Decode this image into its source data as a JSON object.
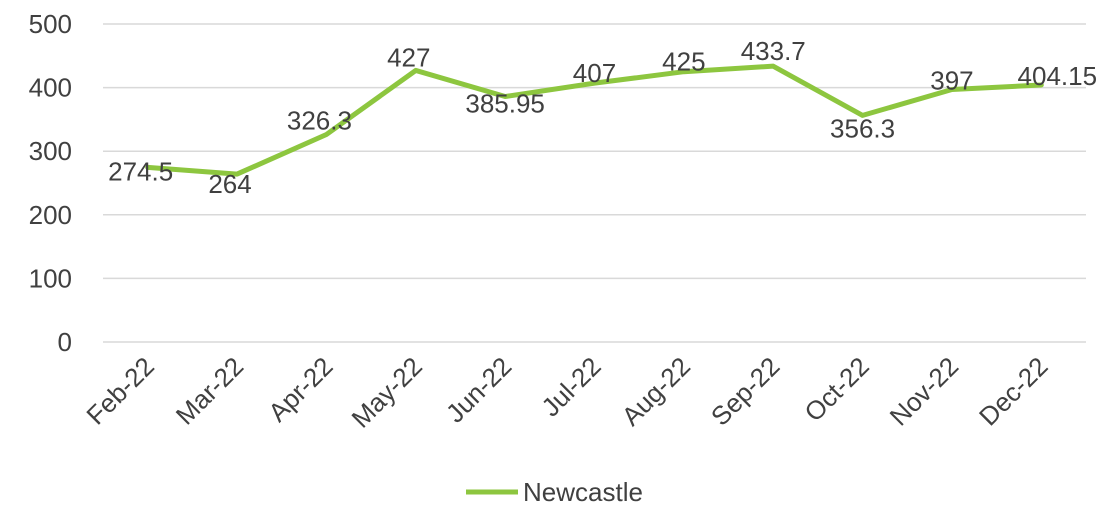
{
  "chart_data": {
    "type": "line",
    "categories": [
      "Feb-22",
      "Mar-22",
      "Apr-22",
      "May-22",
      "Jun-22",
      "Jul-22",
      "Aug-22",
      "Sep-22",
      "Oct-22",
      "Nov-22",
      "Dec-22"
    ],
    "series": [
      {
        "name": "Newcastle",
        "color": "#8dc63f",
        "values": [
          274.5,
          264,
          326.3,
          427,
          385.95,
          407,
          425,
          433.7,
          356.3,
          397,
          404.15
        ],
        "labels": [
          "274.5",
          "264",
          "326.3",
          "427",
          "385.95",
          "407",
          "425",
          "433.7",
          "356.3",
          "397",
          "404.15"
        ]
      }
    ],
    "yticks": [
      "0",
      "100",
      "200",
      "300",
      "400",
      "500"
    ],
    "ylim": [
      0,
      500
    ],
    "grid": true,
    "legend_position": "bottom"
  }
}
